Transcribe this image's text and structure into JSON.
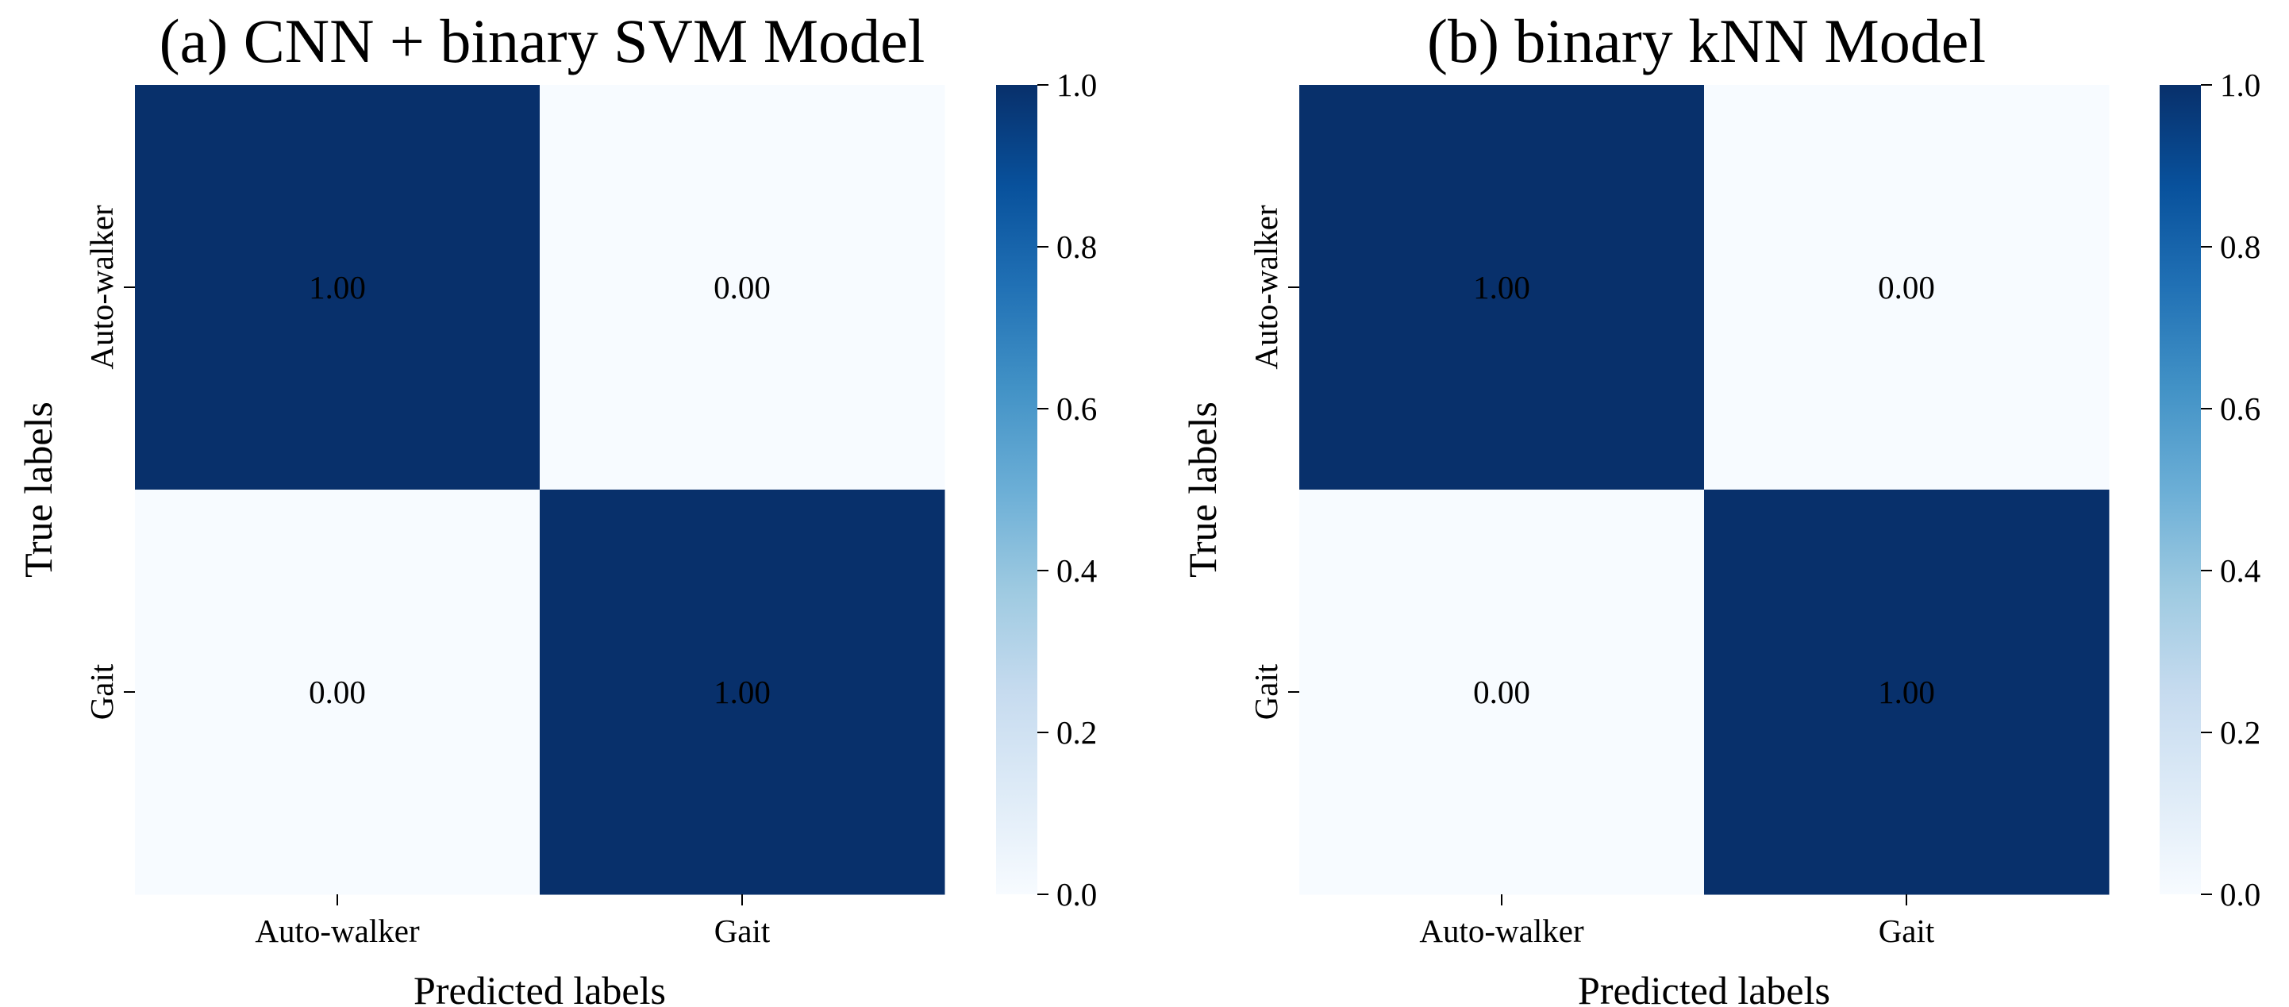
{
  "chart_data": [
    {
      "type": "heatmap",
      "title": "(a) CNN + binary SVM Model",
      "xlabel": "Predicted labels",
      "ylabel": "True labels",
      "x_categories": [
        "Auto-walker",
        "Gait"
      ],
      "y_categories": [
        "Auto-walker",
        "Gait"
      ],
      "values": [
        [
          1.0,
          0.0
        ],
        [
          0.0,
          1.0
        ]
      ],
      "annotation_format": "0.00",
      "colormap": "Blues",
      "colorbar": {
        "range": [
          0.0,
          1.0
        ],
        "ticks": [
          "0.0",
          "0.2",
          "0.4",
          "0.6",
          "0.8",
          "1.0"
        ]
      }
    },
    {
      "type": "heatmap",
      "title": "(b) binary kNN Model",
      "xlabel": "Predicted labels",
      "ylabel": "True labels",
      "x_categories": [
        "Auto-walker",
        "Gait"
      ],
      "y_categories": [
        "Auto-walker",
        "Gait"
      ],
      "values": [
        [
          1.0,
          0.0
        ],
        [
          0.0,
          1.0
        ]
      ],
      "annotation_format": "0.00",
      "colormap": "Blues",
      "colorbar": {
        "range": [
          0.0,
          1.0
        ],
        "ticks": [
          "0.0",
          "0.2",
          "0.4",
          "0.6",
          "0.8",
          "1.0"
        ]
      }
    }
  ],
  "colors": {
    "low": "#f7fbff",
    "high": "#08306b",
    "text_on_dark": "#ffffff",
    "text_on_light": "#000000"
  }
}
